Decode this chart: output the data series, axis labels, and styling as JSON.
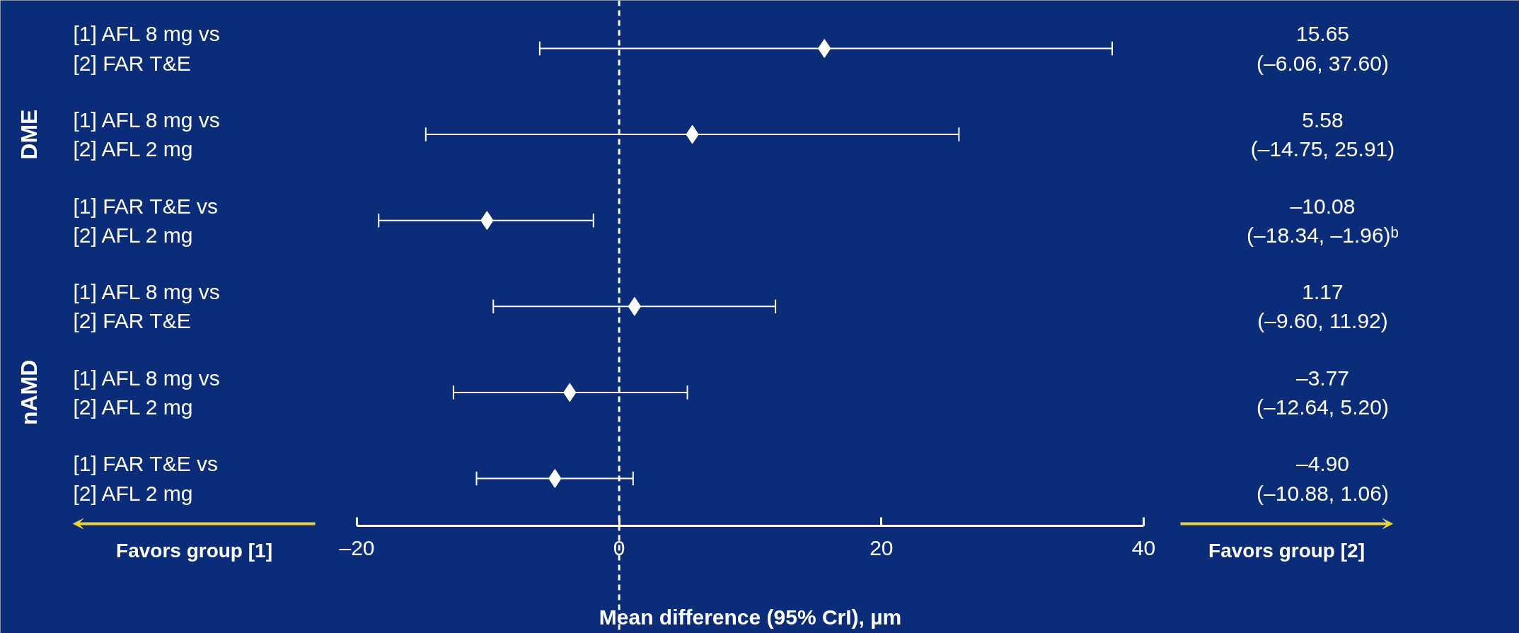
{
  "chart_data": {
    "type": "scatter",
    "orientation": "horizontal",
    "categories": [
      "[1] AFL 8 mg vs\n[2] FAR T&E",
      "[1] AFL 8 mg vs\n[2] AFL 2 mg",
      "[1] FAR T&E vs\n[2] AFL 2 mg",
      "[1] AFL 8 mg vs\n[2] FAR T&E",
      "[1] AFL 8 mg vs\n[2] AFL 2 mg",
      "[1] FAR T&E vs\n[2] AFL 2 mg"
    ],
    "series": [
      {
        "color": "#ffffff",
        "values": [
          15.65,
          5.58,
          -10.08,
          1.17,
          -3.77,
          -4.9
        ],
        "errors": [
          [
            -6.06,
            37.6
          ],
          [
            -14.75,
            25.91
          ],
          [
            -18.34,
            -1.96
          ],
          [
            -9.6,
            11.92
          ],
          [
            -12.64,
            5.2
          ],
          [
            -10.88,
            1.06
          ]
        ],
        "value_labels": [
          "15.65\n(–6.06, 37.60)",
          "5.58\n(–14.75, 25.91)",
          "–10.08\n(–18.34, –1.96)ᵇ",
          "1.17\n(–9.60, 11.92)",
          "–3.77\n(–12.64, 5.20)",
          "–4.90\n(–10.88, 1.06)"
        ]
      }
    ],
    "xlim": [
      -20,
      40
    ],
    "xticks": [
      {
        "value": -20,
        "label": "–20"
      },
      0,
      20,
      40
    ],
    "xlabel": "Mean difference (95% CrI), µm",
    "ref_lines": [
      {
        "axis": "x",
        "value": 0,
        "line_style": "dashed",
        "color": "#ffffff"
      }
    ],
    "marker": "diamond",
    "grid": false,
    "annotations": [
      "DME",
      "nAMD",
      "Favors group [1]",
      "Favors group [2]"
    ]
  }
}
